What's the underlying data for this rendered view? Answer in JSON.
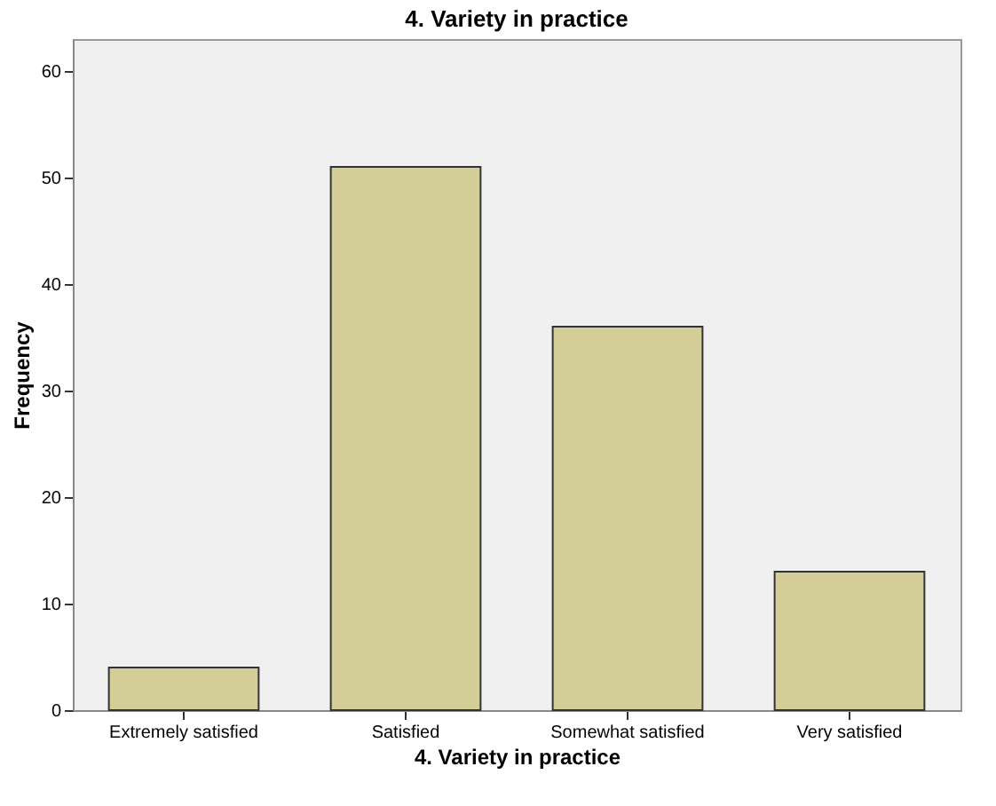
{
  "chart_data": {
    "type": "bar",
    "title": "4. Variety in practice",
    "xlabel": "4. Variety in practice",
    "ylabel": "Frequency",
    "categories": [
      "Extremely satisfied",
      "Satisfied",
      "Somewhat satisfied",
      "Very satisfied"
    ],
    "values": [
      4,
      51,
      36,
      13
    ],
    "color": "#d3ce97",
    "ylim": [
      0,
      63
    ],
    "yticks": [
      0,
      10,
      20,
      30,
      40,
      50,
      60
    ],
    "grid": false
  }
}
